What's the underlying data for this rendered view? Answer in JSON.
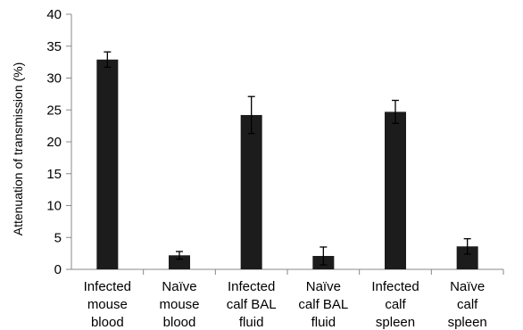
{
  "chart_data": {
    "type": "bar",
    "title": "",
    "ylabel": "Attenuation of transmission (%)",
    "xlabel": "",
    "ylim": [
      0,
      40
    ],
    "yticks": [
      0,
      5,
      10,
      15,
      20,
      25,
      30,
      35,
      40
    ],
    "grid": false,
    "legend": "none",
    "bar_color": "#1c1c1c",
    "categories": [
      [
        "Infected",
        "mouse",
        "blood"
      ],
      [
        "Naïve",
        "mouse",
        "blood"
      ],
      [
        "Infected",
        "calf BAL",
        "fluid"
      ],
      [
        "Naïve",
        "calf BAL",
        "fluid"
      ],
      [
        "Infected",
        "calf",
        "spleen"
      ],
      [
        "Naïve",
        "calf",
        "spleen"
      ]
    ],
    "values": [
      32.9,
      2.2,
      24.2,
      2.1,
      24.7,
      3.6
    ],
    "errors": [
      1.2,
      0.6,
      2.9,
      1.4,
      1.8,
      1.2
    ]
  }
}
